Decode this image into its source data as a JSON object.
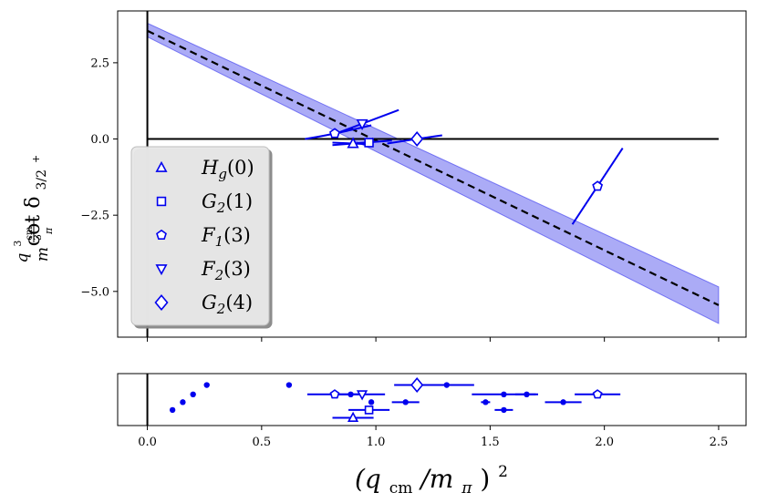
{
  "chart_data": [
    {
      "type": "scatter",
      "panel": "main",
      "ylabel_parts": {
        "num": "q",
        "num_sup": "3",
        "num_sub": "cm",
        "den": "m",
        "den_sup": "3",
        "den_sub": "π",
        "rest": "cot δ",
        "rest_sub": "3/2",
        "rest_sub_sup": "+"
      },
      "xlim": [
        -0.13,
        2.62
      ],
      "ylim": [
        -6.5,
        4.2
      ],
      "yticks": [
        2.5,
        0.0,
        -2.5,
        -5.0
      ],
      "ytick_labels": [
        "2.5",
        "0.0",
        "−2.5",
        "−5.0"
      ],
      "fit": {
        "intercept": 3.55,
        "slope": -3.6,
        "band_left": [
          3.35,
          3.8
        ],
        "band_right": [
          -6.05,
          -4.85
        ]
      },
      "zero_line_xrange": [
        0,
        2.5
      ],
      "legend": [
        {
          "marker": "triangle-up",
          "label": "H",
          "sub": "g",
          "arg": "(0)"
        },
        {
          "marker": "square",
          "label": "G",
          "sub": "2",
          "arg": "(1)"
        },
        {
          "marker": "pentagon",
          "label": "F",
          "sub": "1",
          "arg": "(3)"
        },
        {
          "marker": "triangle-down",
          "label": "F",
          "sub": "2",
          "arg": "(3)"
        },
        {
          "marker": "diamond",
          "label": "G",
          "sub": "2",
          "arg": "(4)"
        }
      ],
      "points": [
        {
          "marker": "triangle-up",
          "x": 0.9,
          "y": -0.15,
          "curve": [
            [
              0.81,
              -0.12
            ],
            [
              0.99,
              -0.18
            ]
          ]
        },
        {
          "marker": "square",
          "x": 0.97,
          "y": -0.12,
          "curve": [
            [
              0.81,
              -0.2
            ],
            [
              1.07,
              -0.05
            ]
          ]
        },
        {
          "marker": "pentagon",
          "x": 0.82,
          "y": 0.18,
          "curve": [
            [
              0.69,
              0.0
            ],
            [
              0.82,
              0.18
            ],
            [
              0.98,
              0.45
            ]
          ]
        },
        {
          "marker": "triangle-down",
          "x": 0.94,
          "y": 0.5,
          "curve": [
            [
              0.84,
              0.22
            ],
            [
              0.94,
              0.5
            ],
            [
              1.1,
              0.95
            ]
          ]
        },
        {
          "marker": "diamond",
          "x": 1.18,
          "y": 0.0,
          "curve": [
            [
              1.05,
              -0.15
            ],
            [
              1.18,
              0.0
            ],
            [
              1.29,
              0.12
            ]
          ]
        },
        {
          "marker": "pentagon",
          "x": 1.97,
          "y": -1.55,
          "curve": [
            [
              1.86,
              -2.8
            ],
            [
              1.97,
              -1.55
            ],
            [
              2.08,
              -0.3
            ]
          ]
        }
      ]
    },
    {
      "type": "scatter",
      "panel": "strip",
      "xlabel_parts": {
        "base": "(q",
        "sub": "cm",
        "mid": "/m",
        "sub2": "π",
        "close": ")",
        "sup": "2"
      },
      "xlim": [
        -0.13,
        2.62
      ],
      "ylim": [
        0,
        10
      ],
      "xticks": [
        0.0,
        0.5,
        1.0,
        1.5,
        2.0,
        2.5
      ],
      "xtick_labels": [
        "0.0",
        "0.5",
        "1.0",
        "1.5",
        "2.0",
        "2.5"
      ],
      "markers": [
        {
          "marker": "triangle-up",
          "x": 0.9,
          "y": 1.5,
          "xerr": 0.09
        },
        {
          "marker": "square",
          "x": 0.97,
          "y": 3.0,
          "xerr": 0.09
        },
        {
          "marker": "pentagon",
          "x": 0.82,
          "y": 6.0,
          "xerr": 0.12
        },
        {
          "marker": "triangle-down",
          "x": 0.94,
          "y": 6.0,
          "xerr": 0.1
        },
        {
          "marker": "diamond",
          "x": 1.18,
          "y": 7.8,
          "xerr": 0.1
        },
        {
          "marker": "pentagon",
          "x": 1.97,
          "y": 6.0,
          "xerr": 0.1
        }
      ],
      "dots": [
        {
          "x": 0.11,
          "y": 3.0,
          "xerr": 0
        },
        {
          "x": 0.155,
          "y": 4.5,
          "xerr": 0
        },
        {
          "x": 0.2,
          "y": 6.0,
          "xerr": 0
        },
        {
          "x": 0.26,
          "y": 7.8,
          "xerr": 0
        },
        {
          "x": 0.62,
          "y": 7.8,
          "xerr": 0
        },
        {
          "x": 0.89,
          "y": 6.0,
          "xerr": 0
        },
        {
          "x": 0.98,
          "y": 4.5,
          "xerr": 0
        },
        {
          "x": 0.97,
          "y": 3.0,
          "xerr": 0
        },
        {
          "x": 1.13,
          "y": 4.5,
          "xerr": 0.06
        },
        {
          "x": 1.31,
          "y": 7.8,
          "xerr": 0.12
        },
        {
          "x": 1.48,
          "y": 4.5,
          "xerr": 0.02
        },
        {
          "x": 1.56,
          "y": 3.0,
          "xerr": 0.04
        },
        {
          "x": 1.56,
          "y": 6.0,
          "xerr": 0.14
        },
        {
          "x": 1.66,
          "y": 6.0,
          "xerr": 0.05
        },
        {
          "x": 1.82,
          "y": 4.5,
          "xerr": 0.08
        }
      ]
    }
  ]
}
